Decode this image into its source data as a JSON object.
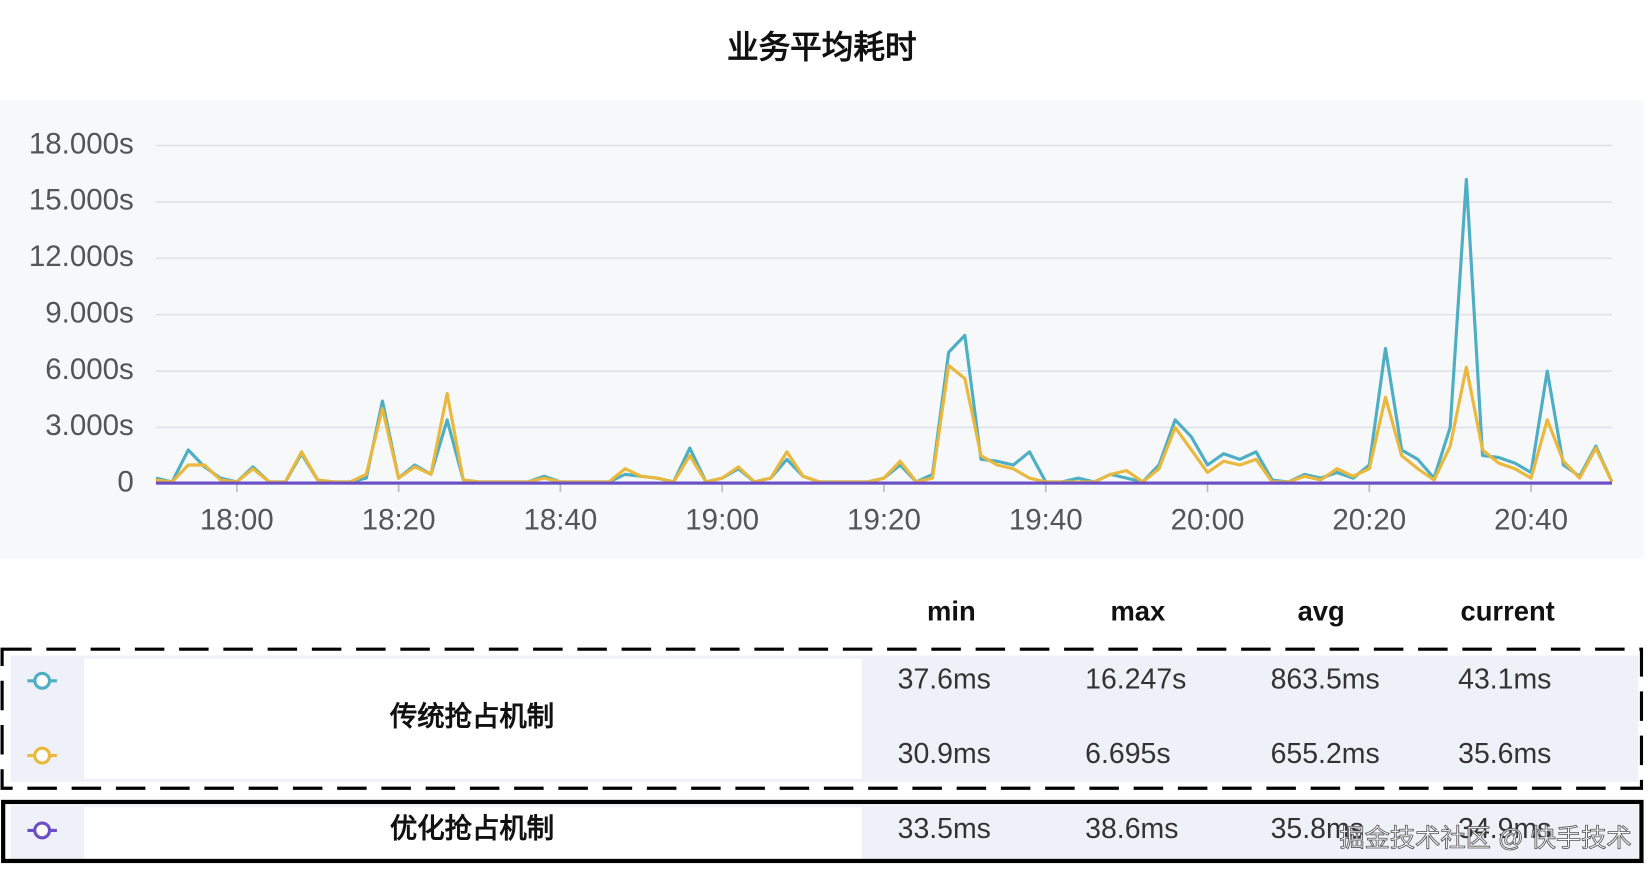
{
  "chart_data": {
    "type": "line",
    "title": "业务平均耗时",
    "x": [
      "17:50",
      "17:52",
      "17:54",
      "17:56",
      "17:58",
      "18:00",
      "18:02",
      "18:04",
      "18:06",
      "18:08",
      "18:10",
      "18:12",
      "18:14",
      "18:16",
      "18:18",
      "18:20",
      "18:22",
      "18:24",
      "18:26",
      "18:28",
      "18:30",
      "18:32",
      "18:34",
      "18:36",
      "18:38",
      "18:40",
      "18:42",
      "18:44",
      "18:46",
      "18:48",
      "18:50",
      "18:52",
      "18:54",
      "18:56",
      "18:58",
      "19:00",
      "19:02",
      "19:04",
      "19:06",
      "19:08",
      "19:10",
      "19:12",
      "19:14",
      "19:16",
      "19:18",
      "19:20",
      "19:22",
      "19:24",
      "19:26",
      "19:28",
      "19:30",
      "19:32",
      "19:34",
      "19:36",
      "19:38",
      "19:40",
      "19:42",
      "19:44",
      "19:46",
      "19:48",
      "19:50",
      "19:52",
      "19:54",
      "19:56",
      "19:58",
      "20:00",
      "20:02",
      "20:04",
      "20:06",
      "20:08",
      "20:10",
      "20:12",
      "20:14",
      "20:16",
      "20:18",
      "20:20",
      "20:22",
      "20:24",
      "20:26",
      "20:28",
      "20:30",
      "20:32",
      "20:34",
      "20:36",
      "20:38",
      "20:40",
      "20:42",
      "20:44",
      "20:46",
      "20:48",
      "20:50"
    ],
    "xlim": [
      "17:50",
      "20:50"
    ],
    "xticks": [
      "18:00",
      "18:20",
      "18:40",
      "19:00",
      "19:20",
      "19:40",
      "20:00",
      "20:20",
      "20:40"
    ],
    "ylim": [
      0,
      18
    ],
    "yticks": [
      0,
      {
        "value": 3,
        "label": "3.000s"
      },
      {
        "value": 6,
        "label": "6.000s"
      },
      {
        "value": 9,
        "label": "9.000s"
      },
      {
        "value": 12,
        "label": "12.000s"
      },
      {
        "value": 15,
        "label": "15.000s"
      },
      {
        "value": 18,
        "label": "18.000s"
      }
    ],
    "grid": true,
    "stats_columns": [
      "min",
      "max",
      "avg",
      "current"
    ],
    "series": [
      {
        "name": "传统抢占机制",
        "color": "#4eaec4",
        "stats": [
          "37.6ms",
          "16.247s",
          "863.5ms",
          "43.1ms"
        ],
        "values": [
          0.3,
          0.1,
          1.8,
          0.9,
          0.3,
          0.1,
          0.9,
          0.1,
          0.1,
          1.6,
          0.2,
          0.1,
          0.1,
          0.3,
          4.4,
          0.3,
          1.0,
          0.5,
          3.4,
          0.2,
          0.1,
          0.1,
          0.1,
          0.1,
          0.4,
          0.1,
          0.1,
          0.1,
          0.1,
          0.5,
          0.4,
          0.3,
          0.1,
          1.9,
          0.1,
          0.3,
          0.8,
          0.1,
          0.3,
          1.3,
          0.4,
          0.1,
          0.1,
          0.1,
          0.1,
          0.3,
          1.0,
          0.1,
          0.5,
          7.0,
          7.9,
          1.3,
          1.2,
          1.0,
          1.7,
          0.1,
          0.1,
          0.3,
          0.1,
          0.5,
          0.3,
          0.1,
          1.0,
          3.4,
          2.5,
          1.0,
          1.6,
          1.3,
          1.7,
          0.2,
          0.1,
          0.5,
          0.3,
          0.6,
          0.3,
          1.0,
          7.2,
          1.8,
          1.3,
          0.3,
          3.0,
          16.2,
          1.5,
          1.4,
          1.1,
          0.6,
          6.0,
          1.0,
          0.4,
          2.0,
          0.1
        ]
      },
      {
        "color": "#e9b83c",
        "stats": [
          "30.9ms",
          "6.695s",
          "655.2ms",
          "35.6ms"
        ],
        "values": [
          0.2,
          0.1,
          1.0,
          1.0,
          0.2,
          0.1,
          0.8,
          0.1,
          0.1,
          1.7,
          0.2,
          0.1,
          0.1,
          0.5,
          4.0,
          0.3,
          0.9,
          0.5,
          4.8,
          0.2,
          0.1,
          0.1,
          0.1,
          0.1,
          0.3,
          0.1,
          0.1,
          0.1,
          0.1,
          0.8,
          0.4,
          0.3,
          0.1,
          1.5,
          0.1,
          0.3,
          0.9,
          0.1,
          0.3,
          1.7,
          0.4,
          0.1,
          0.1,
          0.1,
          0.1,
          0.3,
          1.2,
          0.1,
          0.3,
          6.3,
          5.6,
          1.5,
          1.0,
          0.8,
          0.3,
          0.1,
          0.1,
          0.1,
          0.1,
          0.5,
          0.7,
          0.1,
          0.8,
          3.0,
          1.8,
          0.6,
          1.2,
          1.0,
          1.3,
          0.1,
          0.1,
          0.4,
          0.2,
          0.8,
          0.4,
          0.8,
          4.6,
          1.5,
          0.8,
          0.2,
          2.0,
          6.2,
          1.8,
          1.1,
          0.8,
          0.3,
          3.4,
          1.2,
          0.3,
          1.9,
          0.1
        ]
      },
      {
        "name": "优化抢占机制",
        "color": "#6b4fc6",
        "stats": [
          "33.5ms",
          "38.6ms",
          "35.8ms",
          "34.9ms"
        ],
        "values": [
          0.04,
          0.04,
          0.04,
          0.04,
          0.04,
          0.04,
          0.04,
          0.04,
          0.04,
          0.04,
          0.04,
          0.04,
          0.04,
          0.04,
          0.04,
          0.04,
          0.04,
          0.04,
          0.04,
          0.04,
          0.04,
          0.04,
          0.04,
          0.04,
          0.04,
          0.04,
          0.04,
          0.04,
          0.04,
          0.04,
          0.04,
          0.04,
          0.04,
          0.04,
          0.04,
          0.04,
          0.04,
          0.04,
          0.04,
          0.04,
          0.04,
          0.04,
          0.04,
          0.04,
          0.04,
          0.04,
          0.04,
          0.04,
          0.04,
          0.04,
          0.04,
          0.04,
          0.04,
          0.04,
          0.04,
          0.04,
          0.04,
          0.04,
          0.04,
          0.04,
          0.04,
          0.04,
          0.04,
          0.04,
          0.04,
          0.04,
          0.04,
          0.04,
          0.04,
          0.04,
          0.04,
          0.04,
          0.04,
          0.04,
          0.04,
          0.04,
          0.04,
          0.04,
          0.04,
          0.04,
          0.04,
          0.04,
          0.04,
          0.04,
          0.04,
          0.04,
          0.04,
          0.04,
          0.04,
          0.04,
          0.04
        ]
      }
    ]
  },
  "watermark": "掘金技术社区 @ 快手技术"
}
